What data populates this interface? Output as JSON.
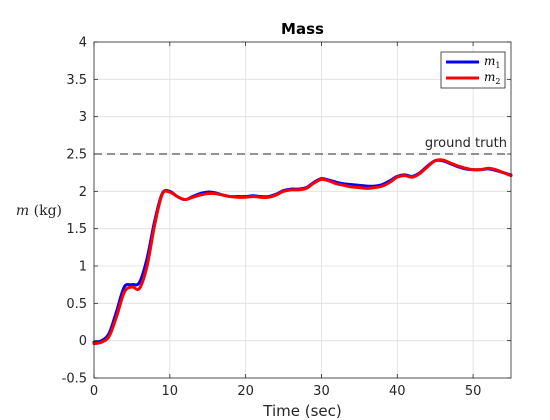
{
  "chart_data": {
    "type": "line",
    "title": "Mass",
    "xlabel": "Time (sec)",
    "ylabel": "m (kg)",
    "xlim": [
      0,
      55
    ],
    "ylim": [
      -0.5,
      4
    ],
    "xticks": [
      0,
      10,
      20,
      30,
      40,
      50
    ],
    "xtick_labels": [
      "0",
      "10",
      "20",
      "30",
      "40",
      "50"
    ],
    "yticks": [
      -0.5,
      0,
      0.5,
      1,
      1.5,
      2,
      2.5,
      3,
      3.5,
      4
    ],
    "ytick_labels": [
      "-0.5",
      "0",
      "0.5",
      "1",
      "1.5",
      "2",
      "2.5",
      "3",
      "3.5",
      "4"
    ],
    "grid": true,
    "legend_position": "top-right",
    "reference_line": {
      "y": 2.5,
      "label": "ground truth",
      "style": "dashed",
      "color": "#262626"
    },
    "series": [
      {
        "name": "m_1",
        "color": "#0000ff",
        "x": [
          0,
          1,
          2,
          3,
          4,
          5,
          6,
          7,
          8,
          9,
          10,
          11,
          12,
          13,
          14,
          15,
          16,
          17,
          18,
          19,
          20,
          21,
          22,
          23,
          24,
          25,
          26,
          27,
          28,
          29,
          30,
          31,
          32,
          33,
          34,
          35,
          36,
          37,
          38,
          39,
          40,
          41,
          42,
          43,
          44,
          45,
          46,
          47,
          48,
          49,
          50,
          51,
          52,
          53,
          54,
          55
        ],
        "y": [
          -0.02,
          0.0,
          0.1,
          0.4,
          0.72,
          0.75,
          0.78,
          1.1,
          1.6,
          1.97,
          2.0,
          1.93,
          1.89,
          1.93,
          1.97,
          1.99,
          1.98,
          1.95,
          1.93,
          1.93,
          1.93,
          1.94,
          1.93,
          1.93,
          1.96,
          2.01,
          2.03,
          2.03,
          2.05,
          2.12,
          2.17,
          2.15,
          2.12,
          2.1,
          2.09,
          2.08,
          2.07,
          2.07,
          2.09,
          2.14,
          2.2,
          2.22,
          2.2,
          2.25,
          2.34,
          2.41,
          2.41,
          2.37,
          2.33,
          2.3,
          2.29,
          2.29,
          2.3,
          2.28,
          2.25,
          2.22
        ]
      },
      {
        "name": "m_2",
        "color": "#ff0000",
        "x": [
          0,
          1,
          2,
          3,
          4,
          5,
          6,
          7,
          8,
          9,
          10,
          11,
          12,
          13,
          14,
          15,
          16,
          17,
          18,
          19,
          20,
          21,
          22,
          23,
          24,
          25,
          26,
          27,
          28,
          29,
          30,
          31,
          32,
          33,
          34,
          35,
          36,
          37,
          38,
          39,
          40,
          41,
          42,
          43,
          44,
          45,
          46,
          47,
          48,
          49,
          50,
          51,
          52,
          53,
          54,
          55
        ],
        "y": [
          -0.04,
          -0.02,
          0.06,
          0.33,
          0.65,
          0.72,
          0.7,
          1.0,
          1.55,
          1.96,
          1.99,
          1.93,
          1.89,
          1.92,
          1.95,
          1.97,
          1.97,
          1.95,
          1.93,
          1.92,
          1.92,
          1.93,
          1.92,
          1.92,
          1.95,
          2.0,
          2.02,
          2.02,
          2.04,
          2.11,
          2.16,
          2.14,
          2.1,
          2.08,
          2.06,
          2.05,
          2.04,
          2.05,
          2.07,
          2.12,
          2.19,
          2.21,
          2.19,
          2.24,
          2.33,
          2.41,
          2.42,
          2.38,
          2.34,
          2.31,
          2.29,
          2.29,
          2.31,
          2.29,
          2.25,
          2.21
        ]
      }
    ]
  }
}
